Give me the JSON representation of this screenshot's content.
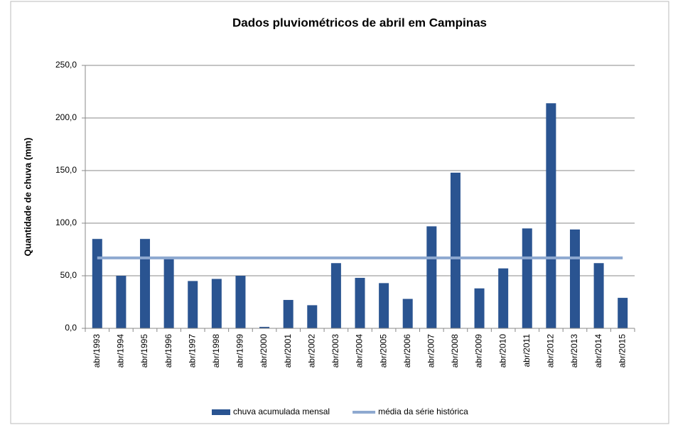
{
  "chart_data": {
    "type": "bar",
    "title": "Dados pluviométricos de abril em Campinas",
    "ylabel": "Quantidade de chuva (mm)",
    "categories": [
      "abr/1993",
      "abr/1994",
      "abr/1995",
      "abr/1996",
      "abr/1997",
      "abr/1998",
      "abr/1999",
      "abr/2000",
      "abr/2001",
      "abr/2002",
      "abr/2003",
      "abr/2004",
      "abr/2005",
      "abr/2006",
      "abr/2007",
      "abr/2008",
      "abr/2009",
      "abr/2010",
      "abr/2011",
      "abr/2012",
      "abr/2013",
      "abr/2014",
      "abr/2015"
    ],
    "series": [
      {
        "name": "chuva acumulada mensal",
        "color": "#2a5491",
        "type": "bar",
        "values": [
          85,
          50,
          85,
          68,
          45,
          47,
          50,
          1.4,
          27,
          22,
          62,
          48,
          43,
          28,
          97,
          148,
          38,
          57,
          95,
          214,
          94,
          62,
          29
        ]
      },
      {
        "name": "média da série histórica",
        "color": "#8ea9d0",
        "type": "line",
        "values": [
          67,
          67,
          67,
          67,
          67,
          67,
          67,
          67,
          67,
          67,
          67,
          67,
          67,
          67,
          67,
          67,
          67,
          67,
          67,
          67,
          67,
          67,
          67
        ]
      }
    ],
    "ylim": [
      0,
      250
    ],
    "yticks": [
      {
        "value": 0,
        "label": "0,0"
      },
      {
        "value": 50,
        "label": "50,0"
      },
      {
        "value": 100,
        "label": "100,0"
      },
      {
        "value": 150,
        "label": "150,0"
      },
      {
        "value": 200,
        "label": "200,0"
      },
      {
        "value": 250,
        "label": "250,0"
      }
    ],
    "grid": true,
    "legend": "bottom"
  }
}
